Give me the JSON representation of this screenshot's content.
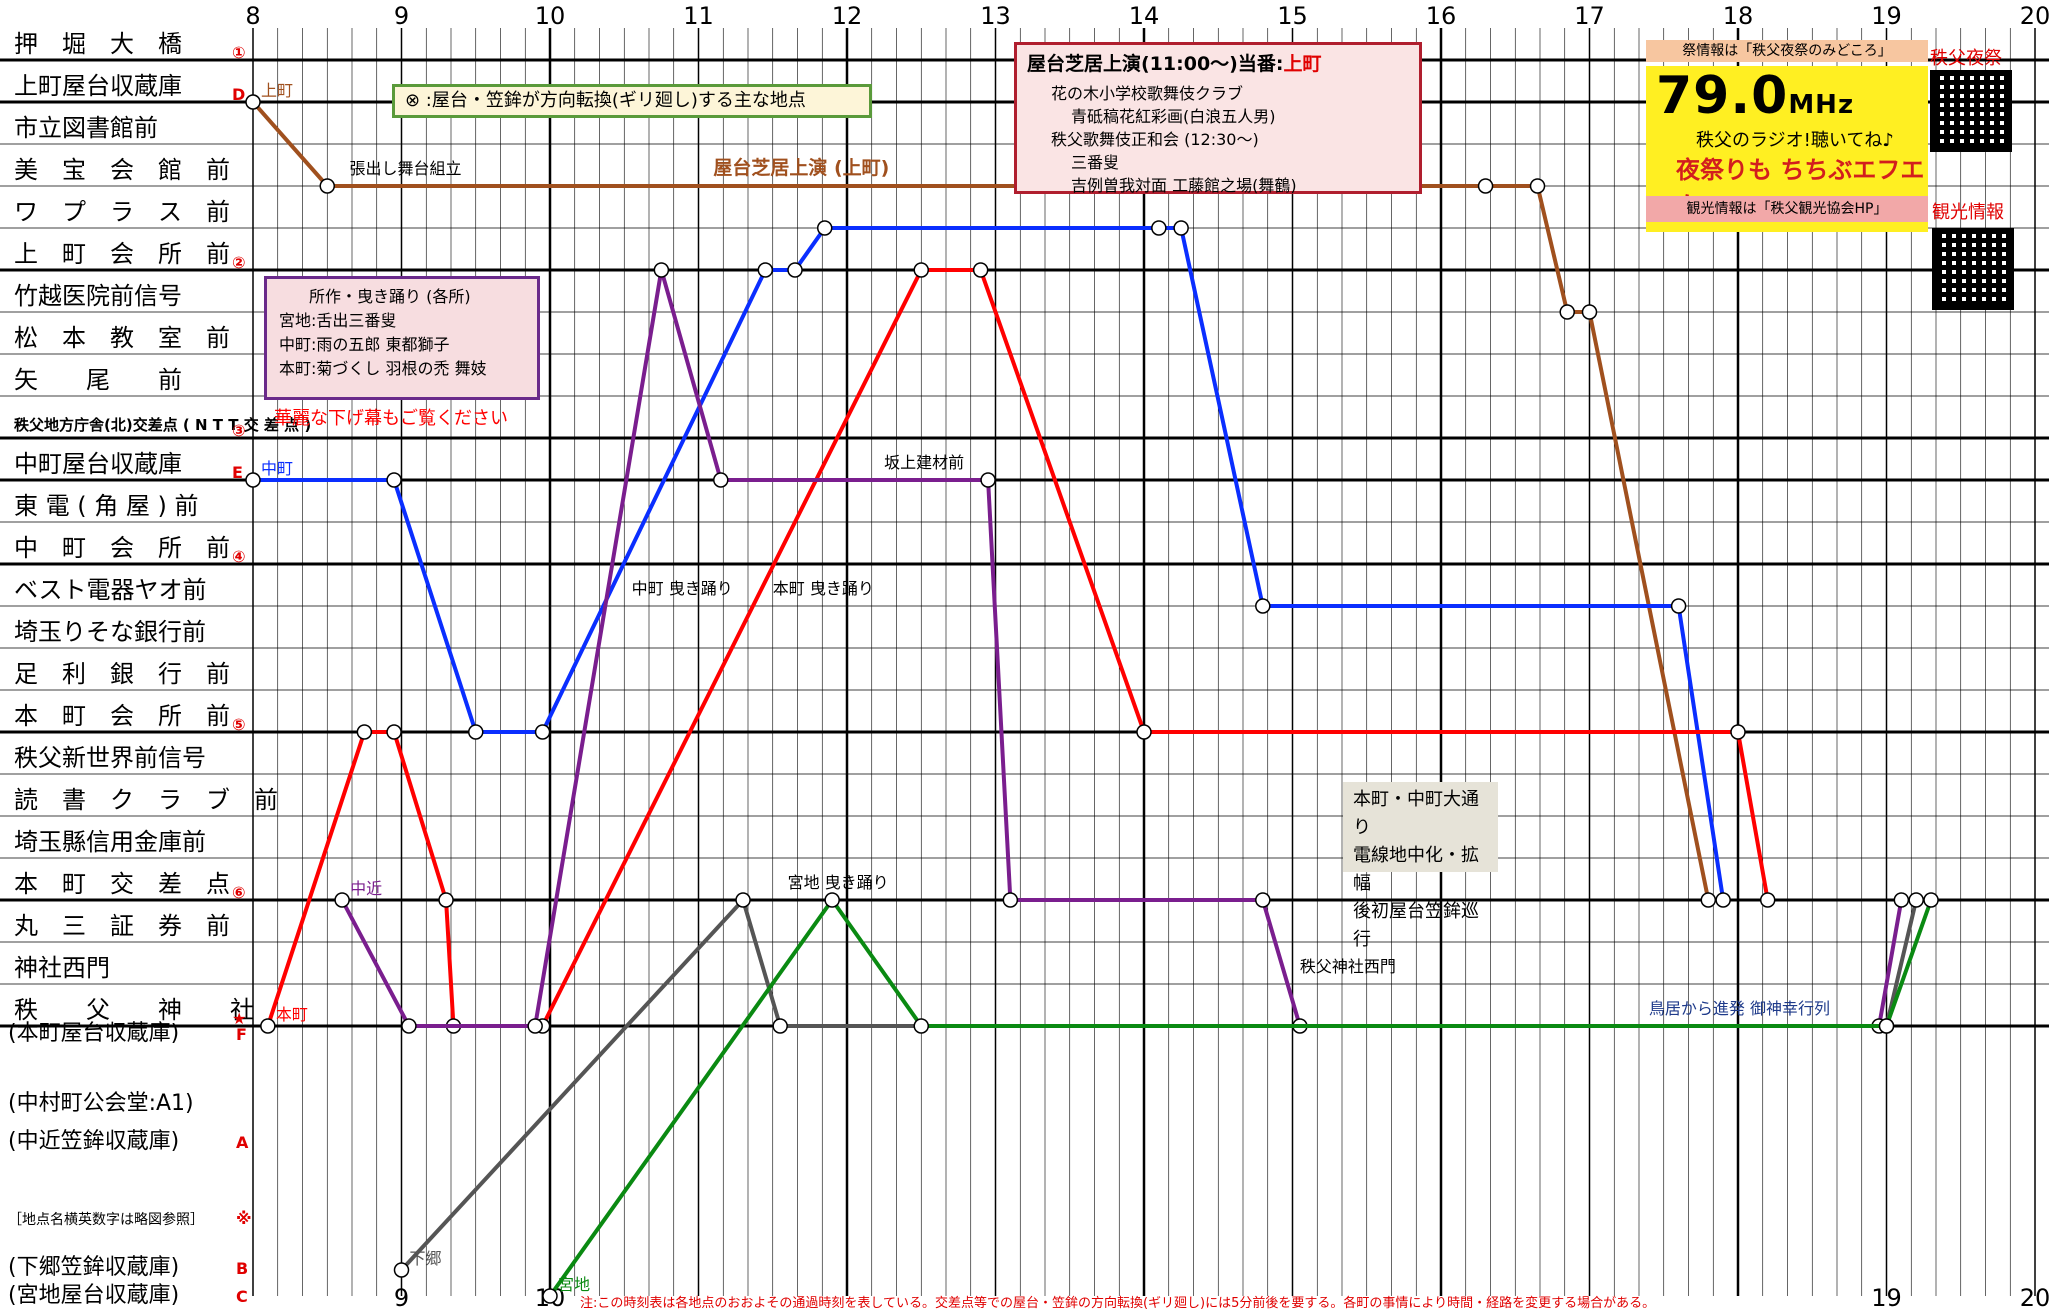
{
  "hours": [
    "8",
    "9",
    "10",
    "11",
    "12",
    "13",
    "14",
    "15",
    "16",
    "17",
    "18",
    "19",
    "20"
  ],
  "hours_bottom": [
    "9",
    "10",
    "19",
    "20"
  ],
  "stations": [
    {
      "label": "押　堀　大　橋",
      "marker": "①",
      "big": true
    },
    {
      "label": "上町屋台収蔵庫",
      "marker": "D",
      "big": true
    },
    {
      "label": "市立図書館前",
      "marker": "",
      "big": false
    },
    {
      "label": "美　宝　会　館　前",
      "marker": "",
      "big": false
    },
    {
      "label": "ワ　プ　ラ　ス　前",
      "marker": "",
      "big": false
    },
    {
      "label": "上　町　会　所　前",
      "marker": "②",
      "big": true
    },
    {
      "label": "竹越医院前信号",
      "marker": "",
      "big": false
    },
    {
      "label": "松　本　教　室　前",
      "marker": "",
      "big": false
    },
    {
      "label": "矢　　尾　　前",
      "marker": "",
      "big": false
    },
    {
      "label": "秩父地方庁舎(北)交差点 ( N T T 交 差 点 )",
      "marker": "③",
      "big": true
    },
    {
      "label": "中町屋台収蔵庫",
      "marker": "E",
      "big": true
    },
    {
      "label": "東 電 ( 角 屋 ) 前",
      "marker": "",
      "big": false
    },
    {
      "label": "中　町　会　所　前",
      "marker": "④",
      "big": true
    },
    {
      "label": "ベスト電器ヤオ前",
      "marker": "",
      "big": false
    },
    {
      "label": "埼玉りそな銀行前",
      "marker": "",
      "big": false
    },
    {
      "label": "足　利　銀　行　前",
      "marker": "",
      "big": false
    },
    {
      "label": "本　町　会　所　前",
      "marker": "⑤",
      "big": true
    },
    {
      "label": "秩父新世界前信号",
      "marker": "",
      "big": false
    },
    {
      "label": "読　書　ク　ラ　ブ　前",
      "marker": "",
      "big": false
    },
    {
      "label": "埼玉縣信用金庫前",
      "marker": "",
      "big": false
    },
    {
      "label": "本　町　交　差　点",
      "marker": "⑥",
      "big": true
    },
    {
      "label": "丸　三　証　券　前",
      "marker": "",
      "big": false
    },
    {
      "label": "神社西門",
      "marker": "",
      "big": false
    },
    {
      "label": "秩　　父　　神　　社",
      "marker": "★",
      "big": true
    }
  ],
  "bottom_labels": [
    {
      "label": "(本町屋台収蔵庫)",
      "marker": "F"
    },
    {
      "label": "(中村町公会堂:A1)",
      "marker": ""
    },
    {
      "label": "(中近笠鉾収蔵庫)",
      "marker": "A"
    },
    {
      "label": "［地点名横英数字は略図参照］",
      "marker": "※"
    },
    {
      "label": "(下郷笠鉾収蔵庫)",
      "marker": "B"
    },
    {
      "label": "(宮地屋台収蔵庫)",
      "marker": "C"
    }
  ],
  "legend_text": "⊗ :屋台・笠鉾が方向転換(ギリ廻し)する主な地点",
  "perf": {
    "title": "屋台芝居上演(11:00〜)当番:",
    "title_town": "上町",
    "lines": [
      "花の木小学校歌舞伎クラブ",
      "青砥稿花紅彩画(白浪五人男)",
      "秩父歌舞伎正和会 (12:30〜)",
      "三番叟",
      "吉例曽我対面 工藤館之場(舞鶴)"
    ]
  },
  "dance": {
    "title": "所作・曳き踊り (各所)",
    "lines": [
      "宮地:舌出三番叟",
      "中町:雨の五郎 東都獅子",
      "本町:菊づくし 羽根の禿 舞妓"
    ],
    "note": "華麗な下げ幕もご覧ください"
  },
  "road": [
    "本町・中町大通り",
    "電線地中化・拡幅",
    "後初屋台笠鉾巡行"
  ],
  "ad": {
    "top": "祭情報は「秩父夜祭のみどころ」",
    "freq": "79.0",
    "unit": "MHz",
    "sub": "秩父のラジオ!聴いてね♪",
    "brand": "夜祭りも ちちぶエフエム",
    "bottom": "観光情報は「秩父観光協会HP」",
    "side1": "秩父夜祭",
    "side2": "観光情報"
  },
  "footnote": "注:この時刻表は各地点のおおよその通過時刻を表している。交差点等での屋台・笠鉾の方向転換(ギリ廻し)には5分前後を要する。各町の事情により時間・経路を変更する場合がある。",
  "colors": {
    "上町": "#a0501e",
    "中町": "#0a2eff",
    "本町": "#ff0000",
    "中近": "#7a1e8e",
    "下郷": "#555555",
    "宮地": "#0a8a12"
  },
  "chart_data": {
    "type": "line",
    "title": "",
    "xlabel": "",
    "ylabel": "",
    "x_unit": "hour",
    "xlim": [
      8,
      20
    ],
    "series": [
      {
        "name": "上町",
        "points": [
          [
            8.0,
            "上町屋台収蔵庫"
          ],
          [
            8.5,
            "美宝会館前"
          ],
          [
            16.3,
            "美宝会館前"
          ],
          [
            16.65,
            "美宝会館前"
          ],
          [
            16.85,
            "竹越医院前信号"
          ],
          [
            17.0,
            "竹越医院前信号"
          ],
          [
            17.8,
            "本町交差点"
          ]
        ]
      },
      {
        "name": "中町",
        "points": [
          [
            8.0,
            "中町屋台収蔵庫"
          ],
          [
            8.95,
            "中町屋台収蔵庫"
          ],
          [
            9.5,
            "本町会所前"
          ],
          [
            9.95,
            "本町会所前"
          ],
          [
            11.45,
            "上町会所前"
          ],
          [
            11.65,
            "上町会所前"
          ],
          [
            11.85,
            "ワプラス前"
          ],
          [
            14.1,
            "ワプラス前"
          ],
          [
            14.25,
            "ワプラス前"
          ],
          [
            14.8,
            "ベスト電器ヤオ前"
          ],
          [
            17.6,
            "ベスト電器ヤオ前"
          ],
          [
            17.9,
            "本町交差点"
          ]
        ]
      },
      {
        "name": "本町",
        "points": [
          [
            8.1,
            "秩父神社"
          ],
          [
            8.75,
            "本町会所前"
          ],
          [
            8.95,
            "本町会所前"
          ],
          [
            9.3,
            "本町交差点"
          ],
          [
            9.35,
            "秩父神社"
          ],
          [
            9.95,
            "秩父神社"
          ],
          [
            12.5,
            "上町会所前"
          ],
          [
            12.9,
            "上町会所前"
          ],
          [
            14.0,
            "本町会所前"
          ],
          [
            18.0,
            "本町会所前"
          ],
          [
            18.2,
            "本町交差点"
          ]
        ]
      },
      {
        "name": "中近",
        "points": [
          [
            8.6,
            "本町交差点"
          ],
          [
            9.05,
            "秩父神社"
          ],
          [
            9.9,
            "秩父神社"
          ],
          [
            10.75,
            "上町会所前"
          ],
          [
            11.15,
            "中町屋台収蔵庫"
          ],
          [
            12.95,
            "中町屋台収蔵庫"
          ],
          [
            13.1,
            "本町交差点"
          ],
          [
            14.8,
            "本町交差点"
          ],
          [
            15.05,
            "秩父神社"
          ],
          [
            18.95,
            "秩父神社"
          ],
          [
            19.1,
            "本町交差点"
          ]
        ]
      },
      {
        "name": "下郷",
        "points": [
          [
            9.0,
            "(下郷笠鉾収蔵庫)"
          ],
          [
            11.3,
            "本町交差点"
          ],
          [
            11.55,
            "秩父神社"
          ],
          [
            19.0,
            "秩父神社"
          ],
          [
            19.2,
            "本町交差点"
          ]
        ]
      },
      {
        "name": "宮地",
        "points": [
          [
            10.0,
            "(宮地屋台収蔵庫)"
          ],
          [
            11.9,
            "本町交差点"
          ],
          [
            12.5,
            "秩父神社"
          ],
          [
            19.0,
            "秩父神社"
          ],
          [
            19.3,
            "本町交差点"
          ]
        ]
      }
    ],
    "annotations": [
      "屋台芝居上演 (上町)",
      "坂上建材前",
      "中町 曳き踊り",
      "本町 曳き踊り",
      "宮地 曳き踊り",
      "鳥居から進発 御神幸行列",
      "秩父神社西門",
      "張出し舞台組立"
    ]
  }
}
